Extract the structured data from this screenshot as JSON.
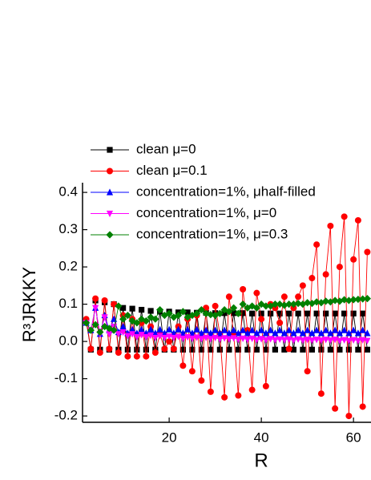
{
  "chart_data": {
    "type": "line",
    "xlabel": "R",
    "ylabel": "R³JRKKY",
    "x": [
      2,
      3,
      4,
      5,
      6,
      7,
      8,
      9,
      10,
      11,
      12,
      13,
      14,
      15,
      16,
      17,
      18,
      19,
      20,
      21,
      22,
      23,
      24,
      25,
      26,
      27,
      28,
      29,
      30,
      31,
      32,
      33,
      34,
      35,
      36,
      37,
      38,
      39,
      40,
      41,
      42,
      43,
      44,
      45,
      46,
      47,
      48,
      49,
      50,
      51,
      52,
      53,
      54,
      55,
      56,
      57,
      58,
      59,
      60,
      61,
      62,
      63
    ],
    "xlim": [
      1.2,
      63.8
    ],
    "xticks": [
      20,
      40,
      60
    ],
    "ylim": [
      -0.217,
      0.426
    ],
    "yticks": [
      -0.2,
      -0.1,
      {
        "value": 0,
        "label": "0.0"
      },
      0.1,
      0.2,
      0.3,
      0.4
    ],
    "series": [
      {
        "name": "clean μ=0",
        "color": "#000000",
        "marker": "square",
        "values": [
          0.055,
          -0.022,
          0.11,
          -0.022,
          0.105,
          -0.022,
          0.1,
          -0.022,
          0.09,
          -0.022,
          0.088,
          -0.022,
          0.085,
          -0.022,
          0.082,
          -0.022,
          0.08,
          -0.022,
          0.08,
          -0.022,
          0.078,
          -0.022,
          0.078,
          -0.022,
          0.077,
          -0.022,
          0.077,
          -0.022,
          0.076,
          -0.022,
          0.076,
          -0.022,
          0.076,
          -0.022,
          0.076,
          -0.022,
          0.075,
          -0.022,
          0.075,
          -0.022,
          0.075,
          -0.022,
          0.075,
          -0.022,
          0.075,
          -0.022,
          0.075,
          -0.022,
          0.075,
          -0.022,
          0.075,
          -0.022,
          0.075,
          -0.022,
          0.075,
          -0.022,
          0.075,
          -0.022,
          0.075,
          -0.022,
          0.075,
          -0.022
        ]
      },
      {
        "name": "clean μ=0.1",
        "color": "#ff0000",
        "marker": "circle",
        "values": [
          0.06,
          -0.02,
          0.115,
          -0.03,
          0.11,
          -0.02,
          0.1,
          -0.03,
          0.07,
          -0.04,
          0.06,
          -0.04,
          0.05,
          -0.04,
          0.04,
          -0.03,
          0.02,
          -0.02,
          0.0,
          -0.02,
          0.04,
          -0.065,
          0.06,
          -0.08,
          0.07,
          -0.105,
          0.09,
          -0.135,
          0.095,
          0.02,
          -0.15,
          0.12,
          0.02,
          -0.145,
          0.14,
          0.03,
          -0.13,
          0.13,
          0.06,
          -0.12,
          0.1,
          0.09,
          0.05,
          0.12,
          -0.02,
          0.09,
          0.12,
          0.15,
          -0.08,
          0.17,
          0.26,
          -0.14,
          0.18,
          0.31,
          -0.18,
          0.2,
          0.335,
          -0.2,
          0.22,
          0.325,
          -0.175,
          0.24
        ]
      },
      {
        "name": "concentration=1%, μhalf-filled",
        "color": "#0000ff",
        "marker": "triangle-up",
        "values": [
          0.05,
          0.03,
          0.09,
          0.02,
          0.07,
          0.03,
          0.06,
          0.025,
          0.04,
          0.022,
          0.032,
          0.022,
          0.032,
          0.022,
          0.032,
          0.022,
          0.032,
          0.022,
          0.032,
          0.022,
          0.032,
          0.022,
          0.032,
          0.022,
          0.032,
          0.022,
          0.03,
          0.022,
          0.03,
          0.022,
          0.03,
          0.022,
          0.03,
          0.022,
          0.03,
          0.022,
          0.03,
          0.022,
          0.03,
          0.022,
          0.03,
          0.022,
          0.03,
          0.022,
          0.03,
          0.022,
          0.03,
          0.022,
          0.03,
          0.022,
          0.03,
          0.022,
          0.03,
          0.022,
          0.03,
          0.022,
          0.03,
          0.022,
          0.03,
          0.022,
          0.03,
          0.022
        ]
      },
      {
        "name": "concentration=1%, μ=0",
        "color": "#ff00ff",
        "marker": "triangle-down",
        "values": [
          0.05,
          0.03,
          0.09,
          0.02,
          0.065,
          0.02,
          0.04,
          0.02,
          0.025,
          0.015,
          0.02,
          0.012,
          0.018,
          0.012,
          0.016,
          0.01,
          0.015,
          0.01,
          0.014,
          0.01,
          0.013,
          0.008,
          0.012,
          0.008,
          0.011,
          0.007,
          0.01,
          0.007,
          0.01,
          0.006,
          0.009,
          0.006,
          0.009,
          0.005,
          0.008,
          0.005,
          0.008,
          0.004,
          0.007,
          0.004,
          0.007,
          0.004,
          0.006,
          0.004,
          0.006,
          0.003,
          0.006,
          0.003,
          0.005,
          0.003,
          0.005,
          0.003,
          0.005,
          0.003,
          0.005,
          0.002,
          0.004,
          0.002,
          0.004,
          0.002,
          0.004,
          0.002
        ]
      },
      {
        "name": "concentration=1%, μ=0.3",
        "color": "#008000",
        "marker": "diamond",
        "values": [
          0.05,
          0.03,
          0.045,
          0.025,
          0.04,
          0.035,
          0.03,
          0.095,
          0.06,
          0.07,
          0.055,
          0.05,
          0.06,
          0.055,
          0.065,
          0.06,
          0.085,
          0.07,
          0.075,
          0.065,
          0.07,
          0.08,
          0.065,
          0.07,
          0.075,
          0.085,
          0.075,
          0.072,
          0.07,
          0.075,
          0.085,
          0.08,
          0.09,
          0.075,
          0.1,
          0.09,
          0.095,
          0.09,
          0.1,
          0.095,
          0.095,
          0.1,
          0.1,
          0.097,
          0.1,
          0.1,
          0.102,
          0.1,
          0.104,
          0.102,
          0.106,
          0.104,
          0.108,
          0.106,
          0.11,
          0.108,
          0.112,
          0.11,
          0.112,
          0.113,
          0.114,
          0.115
        ]
      }
    ]
  }
}
